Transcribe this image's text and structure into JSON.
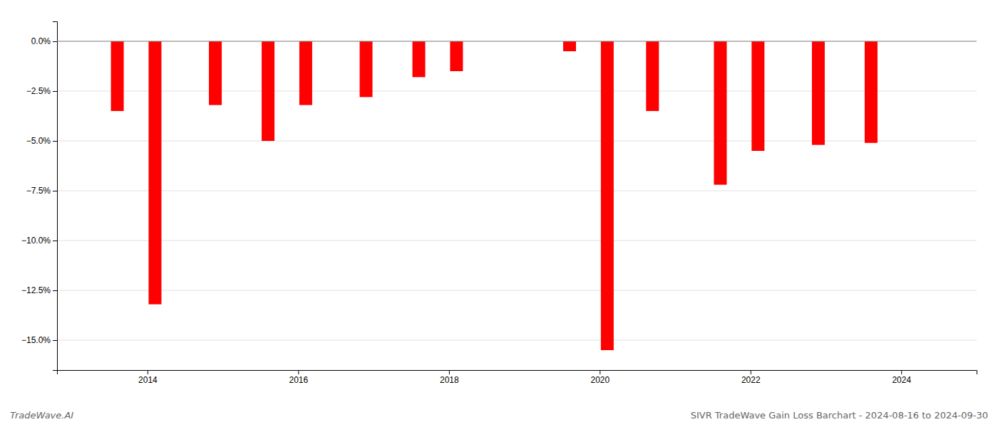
{
  "chart_data": {
    "type": "bar",
    "x": [
      2013.6,
      2014.1,
      2014.9,
      2015.6,
      2016.1,
      2016.9,
      2017.6,
      2018.1,
      2019.6,
      2020.1,
      2020.7,
      2021.6,
      2022.1,
      2022.9,
      2023.6
    ],
    "values": [
      -3.5,
      -13.2,
      -3.2,
      -5.0,
      -3.2,
      -2.8,
      -1.8,
      -1.5,
      -0.5,
      -15.5,
      -3.5,
      -7.2,
      -5.5,
      -5.2,
      -5.1
    ],
    "color": "#ff0000",
    "xlim": [
      2012.8,
      2025.0
    ],
    "xticks": [
      2014,
      2016,
      2018,
      2020,
      2022,
      2024
    ],
    "ylim": [
      -16.5,
      1.0
    ],
    "yticks": [
      {
        "value": 0.0,
        "label": "0.0%"
      },
      {
        "value": -2.5,
        "label": "−2.5%"
      },
      {
        "value": -5.0,
        "label": "−5.0%"
      },
      {
        "value": -7.5,
        "label": "−7.5%"
      },
      {
        "value": -10.0,
        "label": "−10.0%"
      },
      {
        "value": -12.5,
        "label": "−12.5%"
      },
      {
        "value": -15.0,
        "label": "−15.0%"
      }
    ],
    "grid": true,
    "annotations": [
      "TradeWave.AI",
      "SIVR TradeWave Gain Loss Barchart - 2024-08-16 to 2024-09-30"
    ]
  }
}
